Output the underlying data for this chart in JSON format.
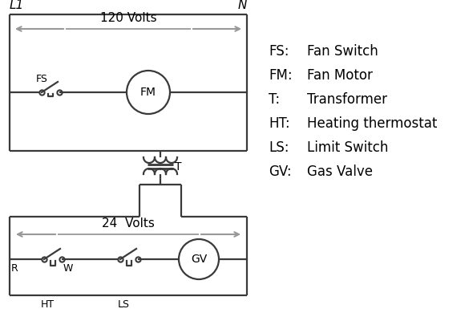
{
  "bg_color": "#ffffff",
  "line_color": "#3a3a3a",
  "arrow_color": "#999999",
  "text_color": "#000000",
  "legend": [
    [
      "FS:",
      "Fan Switch"
    ],
    [
      "FM:",
      "Fan Motor"
    ],
    [
      "T:",
      "Transformer"
    ],
    [
      "HT:",
      "Heating thermostat"
    ],
    [
      "LS:",
      "Limit Switch"
    ],
    [
      "GV:",
      "Gas Valve"
    ]
  ],
  "L1_label": "L1",
  "N_label": "N",
  "volts120_label": "120 Volts",
  "volts24_label": "24  Volts",
  "R_label": "R",
  "W_label": "W",
  "HT_label": "HT",
  "LS_label": "LS",
  "T_label": "T"
}
